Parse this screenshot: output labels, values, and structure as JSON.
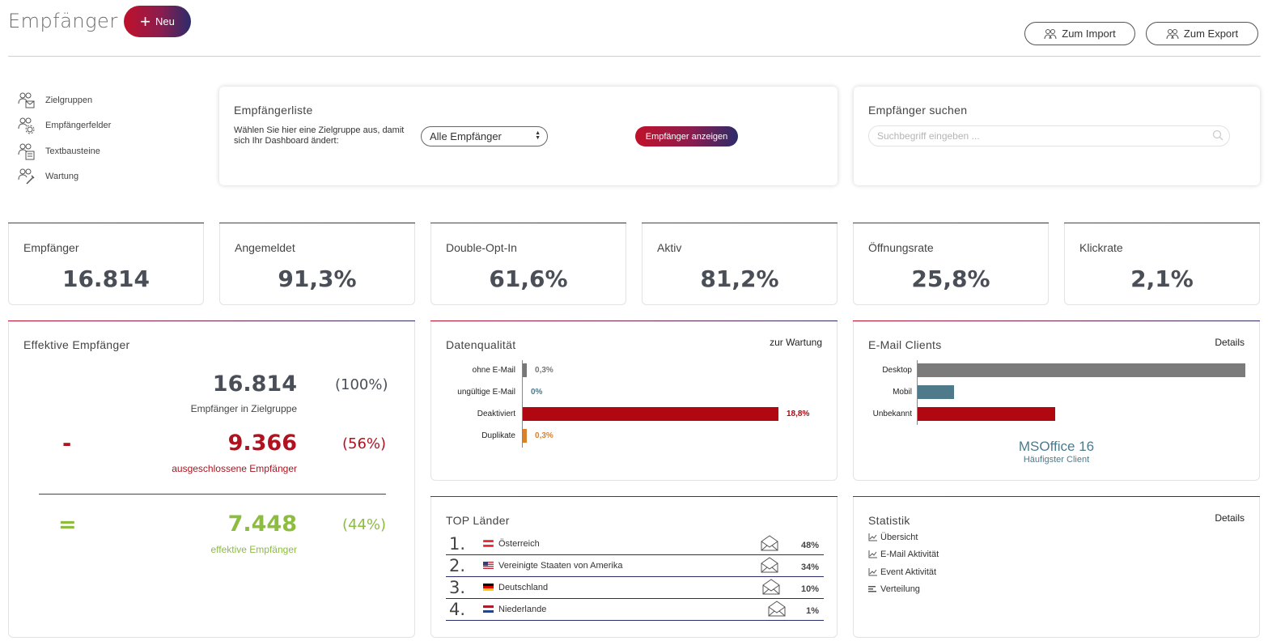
{
  "header": {
    "title": "Empfänger",
    "new_label": "Neu",
    "import_label": "Zum Import",
    "export_label": "Zum Export"
  },
  "sidebar": {
    "items": [
      {
        "label": "Zielgruppen",
        "icon": "users-mail-icon"
      },
      {
        "label": "Empfängerfelder",
        "icon": "users-gear-icon"
      },
      {
        "label": "Textbausteine",
        "icon": "users-doc-icon"
      },
      {
        "label": "Wartung",
        "icon": "users-wrench-icon"
      }
    ]
  },
  "list": {
    "title": "Empfängerliste",
    "hint": "Wählen Sie hier eine Zielgruppe aus, damit sich Ihr Dashboard ändert:",
    "selected": "Alle Empfänger",
    "show_label": "Empfänger anzeigen"
  },
  "search": {
    "title": "Empfänger suchen",
    "placeholder": "Suchbegriff eingeben ..."
  },
  "kpis": [
    {
      "label": "Empfänger",
      "value": "16.814"
    },
    {
      "label": "Angemeldet",
      "value": "91,3%"
    },
    {
      "label": "Double-Opt-In",
      "value": "61,6%"
    },
    {
      "label": "Aktiv",
      "value": "81,2%"
    },
    {
      "label": "Öffnungsrate",
      "value": "25,8%"
    },
    {
      "label": "Klickrate",
      "value": "2,1%"
    }
  ],
  "effective": {
    "title": "Effektive Empfänger",
    "total": "16.814",
    "total_pct": "(100%)",
    "total_label": "Empfänger in Zielgruppe",
    "minus_sign": "-",
    "excluded": "9.366",
    "excluded_pct": "(56%)",
    "excluded_label": "ausgeschlossene Empfänger",
    "equals_sign": "=",
    "effective": "7.448",
    "effective_pct": "(44%)",
    "effective_label": "effektive Empfänger",
    "colors": {
      "excluded": "#b0121f",
      "effective": "#8cbd3f"
    }
  },
  "quality": {
    "title": "Datenqualität",
    "link": "zur Wartung",
    "rows": [
      {
        "label": "ohne E-Mail",
        "value": 0.3,
        "text": "0,3%",
        "color": "#777777"
      },
      {
        "label": "ungültige E-Mail",
        "value": 0,
        "text": "0%",
        "color": "#4e7a8c"
      },
      {
        "label": "Deaktiviert",
        "value": 18.8,
        "text": "18,8%",
        "color": "#b00710"
      },
      {
        "label": "Duplikate",
        "value": 0.3,
        "text": "0,3%",
        "color": "#d9822b"
      }
    ]
  },
  "clients": {
    "title": "E-Mail Clients",
    "link": "Details",
    "rows": [
      {
        "label": "Desktop",
        "value": 100,
        "color": "#7b7b7b"
      },
      {
        "label": "Mobil",
        "value": 11,
        "color": "#4e7a8c"
      },
      {
        "label": "Unbekannt",
        "value": 42,
        "color": "#b00710"
      }
    ],
    "top_client": "MSOffice 16",
    "top_client_label": "Häufigster Client"
  },
  "countries": {
    "title": "TOP Länder",
    "rows": [
      {
        "rank": "1.",
        "name": "Österreich",
        "pct": "48%",
        "flag": "at"
      },
      {
        "rank": "2.",
        "name": "Vereinigte Staaten von Amerika",
        "pct": "34%",
        "flag": "us"
      },
      {
        "rank": "3.",
        "name": "Deutschland",
        "pct": "10%",
        "flag": "de"
      },
      {
        "rank": "4.",
        "name": "Niederlande",
        "pct": "1%",
        "flag": "nl"
      }
    ]
  },
  "statistik": {
    "title": "Statistik",
    "link": "Details",
    "items": [
      {
        "label": "Übersicht",
        "icon": "line-chart-icon"
      },
      {
        "label": "E-Mail Aktivität",
        "icon": "line-chart-icon"
      },
      {
        "label": "Event Aktivität",
        "icon": "line-chart-icon"
      },
      {
        "label": "Verteilung",
        "icon": "bar-list-icon"
      }
    ]
  }
}
